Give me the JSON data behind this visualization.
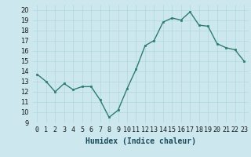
{
  "x": [
    0,
    1,
    2,
    3,
    4,
    5,
    6,
    7,
    8,
    9,
    10,
    11,
    12,
    13,
    14,
    15,
    16,
    17,
    18,
    19,
    20,
    21,
    22,
    23
  ],
  "y": [
    13.7,
    13.0,
    12.0,
    12.8,
    12.2,
    12.5,
    12.5,
    11.2,
    9.5,
    10.2,
    12.3,
    14.2,
    16.5,
    17.0,
    18.8,
    19.2,
    19.0,
    19.8,
    18.5,
    18.4,
    16.7,
    16.3,
    16.1,
    15.0
  ],
  "xlabel": "Humidex (Indice chaleur)",
  "xlim": [
    -0.5,
    23.5
  ],
  "ylim": [
    9,
    20.5
  ],
  "yticks": [
    9,
    10,
    11,
    12,
    13,
    14,
    15,
    16,
    17,
    18,
    19,
    20
  ],
  "xtick_labels": [
    "0",
    "1",
    "2",
    "3",
    "4",
    "5",
    "6",
    "7",
    "8",
    "9",
    "10",
    "11",
    "12",
    "13",
    "14",
    "15",
    "16",
    "17",
    "18",
    "19",
    "20",
    "21",
    "22",
    "23"
  ],
  "line_color": "#2e7d6e",
  "marker_color": "#2e7d6e",
  "bg_color": "#cce8ee",
  "grid_color": "#b0d8e0",
  "tick_font_size": 6,
  "xlabel_font_size": 7
}
